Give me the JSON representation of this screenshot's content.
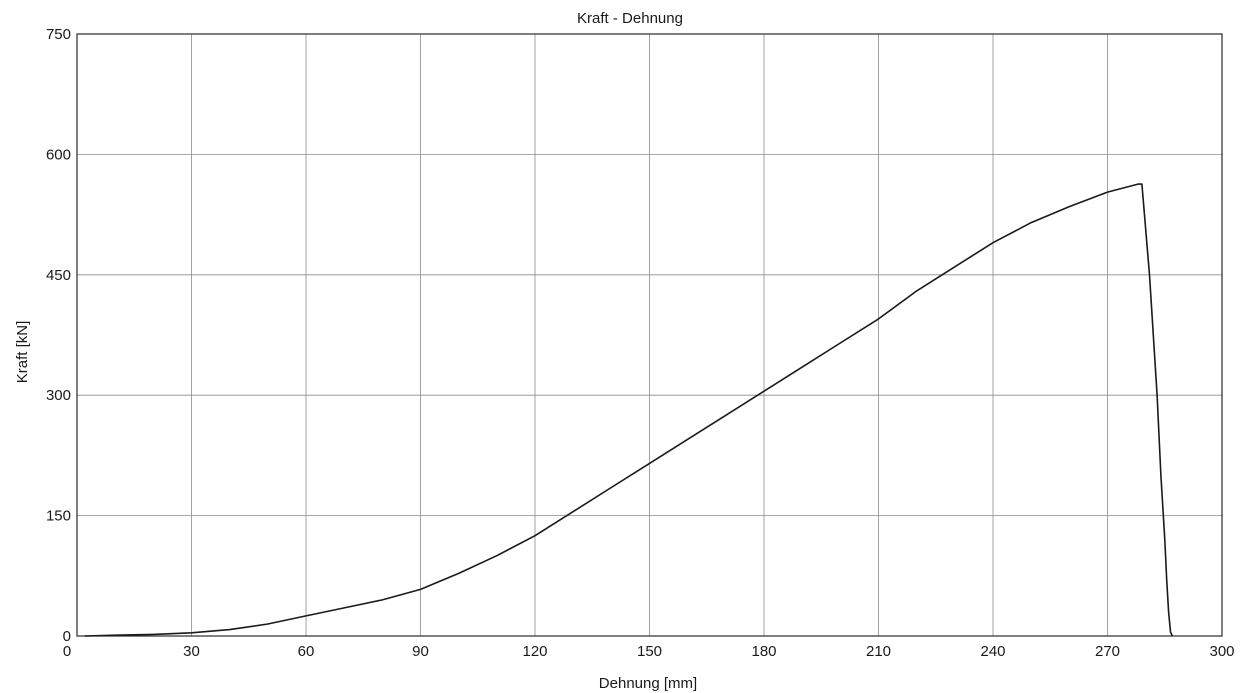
{
  "chart_data": {
    "type": "line",
    "title": "Kraft - Dehnung",
    "xlabel": "Dehnung [mm]",
    "ylabel": "Kraft [kN]",
    "xlim": [
      0,
      300
    ],
    "ylim": [
      0,
      750
    ],
    "xticks": [
      "0",
      "30",
      "60",
      "90",
      "120",
      "150",
      "180",
      "210",
      "240",
      "270",
      "300"
    ],
    "yticks": [
      "0",
      "150",
      "300",
      "450",
      "600",
      "750"
    ],
    "grid": true,
    "legend": "none",
    "colors": {
      "line": "#1a1a1a",
      "grid": "#8c8c8c",
      "frame": "#2a2a2a"
    },
    "series": [
      {
        "x": [
          2,
          10,
          20,
          30,
          40,
          50,
          60,
          70,
          80,
          90,
          100,
          110,
          120,
          130,
          140,
          150,
          160,
          170,
          180,
          190,
          200,
          210,
          220,
          230,
          240,
          250,
          260,
          270,
          278,
          279,
          281,
          283,
          284,
          285,
          285.5,
          286,
          286.5,
          287
        ],
        "y": [
          0,
          1,
          2,
          4,
          8,
          15,
          25,
          35,
          45,
          58,
          78,
          100,
          125,
          155,
          185,
          215,
          245,
          275,
          305,
          335,
          365,
          395,
          430,
          460,
          490,
          515,
          535,
          553,
          563,
          563,
          450,
          300,
          200,
          120,
          70,
          30,
          5,
          0
        ]
      }
    ]
  }
}
